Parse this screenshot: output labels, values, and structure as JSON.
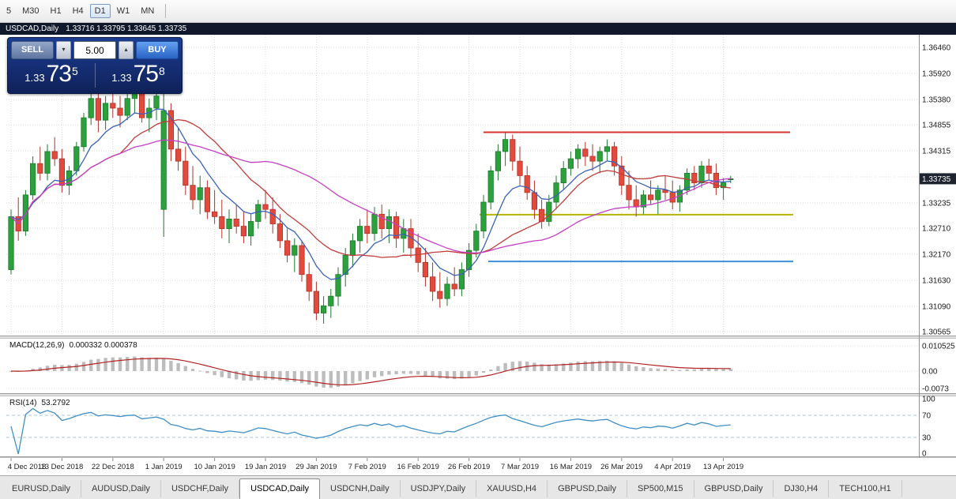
{
  "colors": {
    "candle_up": "#2ba03c",
    "candle_up_border": "#1d7a2c",
    "candle_down": "#e14a3c",
    "candle_down_border": "#b23327",
    "grid": "#d8d8d8",
    "badge_bg": "#1e2430",
    "macd_hist": "#bdbdbd",
    "macd_signal": "#b22222",
    "rsi_line": "#3f8fc5",
    "rsi_level": "#a9c3dc",
    "panel_bg": "#16307c"
  },
  "toolbar": {
    "timeframes": [
      {
        "label": "5",
        "active": false
      },
      {
        "label": "M30",
        "active": false
      },
      {
        "label": "H1",
        "active": false
      },
      {
        "label": "H4",
        "active": false
      },
      {
        "label": "D1",
        "active": true
      },
      {
        "label": "W1",
        "active": false
      },
      {
        "label": "MN",
        "active": false
      }
    ]
  },
  "caption": {
    "title": "USDCAD,Daily",
    "ohlc": "1.33716 1.33795 1.33645 1.33735"
  },
  "trade_panel": {
    "sell_label": "SELL",
    "buy_label": "BUY",
    "volume": "5.00",
    "volume_down_icon": "▾",
    "volume_up_icon": "▴",
    "sell_price": {
      "base": "1.33",
      "big": "73",
      "pipette": "5"
    },
    "buy_price": {
      "base": "1.33",
      "big": "75",
      "pipette": "8"
    }
  },
  "chart": {
    "current_price": "1.33735"
  },
  "indicators": {
    "macd": {
      "name": "MACD(12,26,9)",
      "values": "0.000332 0.000378",
      "fast": 12,
      "slow": 26,
      "signal": 9,
      "scale_labels": [
        "0.010525",
        "0.00",
        "-0.0073"
      ]
    },
    "rsi": {
      "name": "RSI(14)",
      "value": "53.2792",
      "period": 14,
      "scale_labels": [
        "100",
        "70",
        "30",
        "0"
      ],
      "levels": [
        70,
        30
      ]
    }
  },
  "chart_data": {
    "type": "candlestick",
    "symbol": "USDCAD",
    "period": "Daily",
    "ylim": [
      1.30565,
      1.3646
    ],
    "y_axis_labels": [
      "1.36460",
      "1.35920",
      "1.35380",
      "1.34855",
      "1.34315",
      "1.33775",
      "1.33235",
      "1.32710",
      "1.32170",
      "1.31630",
      "1.31090",
      "1.30565"
    ],
    "x_axis": {
      "start": 0,
      "every": 7,
      "labels": [
        "4 Dec 2018",
        "13 Dec 2018",
        "22 Dec 2018",
        "1 Jan 2019",
        "10 Jan 2019",
        "19 Jan 2019",
        "29 Jan 2019",
        "7 Feb 2019",
        "16 Feb 2019",
        "26 Feb 2019",
        "7 Mar 2019",
        "16 Mar 2019",
        "26 Mar 2019",
        "4 Apr 2019",
        "13 Apr 2019"
      ]
    },
    "mas": [
      {
        "name": "fast",
        "type": "ema",
        "period": 8,
        "color": "#3a62b8"
      },
      {
        "name": "mid",
        "type": "sma",
        "period": 16,
        "color": "#c23b3b"
      },
      {
        "name": "slow",
        "type": "sma",
        "period": 34,
        "color": "#c43fc4"
      }
    ],
    "hlines": [
      {
        "name": "resistance-line-red",
        "price": 1.347,
        "x1": 612,
        "x2": 1000,
        "color": "#d9342b"
      },
      {
        "name": "support-line-yellow",
        "price": 1.3299,
        "x1": 607,
        "x2": 1004,
        "color": "#b8b400"
      },
      {
        "name": "support-line-blue",
        "price": 1.3202,
        "x1": 618,
        "x2": 1004,
        "color": "#3d8fd6"
      }
    ],
    "candles": [
      [
        1.3185,
        1.331,
        1.3175,
        1.3295
      ],
      [
        1.3295,
        1.3335,
        1.3245,
        1.3265
      ],
      [
        1.3265,
        1.335,
        1.3255,
        1.334
      ],
      [
        1.334,
        1.342,
        1.333,
        1.3405
      ],
      [
        1.3405,
        1.344,
        1.337,
        1.3385
      ],
      [
        1.3385,
        1.3445,
        1.337,
        1.343
      ],
      [
        1.343,
        1.346,
        1.34,
        1.3415
      ],
      [
        1.3415,
        1.3435,
        1.3345,
        1.336
      ],
      [
        1.336,
        1.34,
        1.334,
        1.339
      ],
      [
        1.339,
        1.345,
        1.338,
        1.344
      ],
      [
        1.344,
        1.351,
        1.343,
        1.35
      ],
      [
        1.35,
        1.356,
        1.3485,
        1.354
      ],
      [
        1.354,
        1.3555,
        1.347,
        1.3495
      ],
      [
        1.3495,
        1.3545,
        1.3475,
        1.353
      ],
      [
        1.353,
        1.356,
        1.35,
        1.352
      ],
      [
        1.352,
        1.3545,
        1.348,
        1.3505
      ],
      [
        1.3505,
        1.355,
        1.3495,
        1.354
      ],
      [
        1.354,
        1.3562,
        1.351,
        1.355
      ],
      [
        1.355,
        1.3558,
        1.349,
        1.35
      ],
      [
        1.35,
        1.354,
        1.347,
        1.352
      ],
      [
        1.352,
        1.3556,
        1.3495,
        1.3545
      ],
      [
        1.331,
        1.3561,
        1.3253,
        1.3515
      ],
      [
        1.3515,
        1.353,
        1.341,
        1.3435
      ],
      [
        1.3435,
        1.348,
        1.339,
        1.341
      ],
      [
        1.341,
        1.344,
        1.334,
        1.336
      ],
      [
        1.336,
        1.34,
        1.331,
        1.333
      ],
      [
        1.333,
        1.338,
        1.33,
        1.3355
      ],
      [
        1.3355,
        1.337,
        1.329,
        1.3305
      ],
      [
        1.3305,
        1.335,
        1.328,
        1.3295
      ],
      [
        1.3295,
        1.333,
        1.325,
        1.327
      ],
      [
        1.327,
        1.331,
        1.324,
        1.329
      ],
      [
        1.329,
        1.332,
        1.326,
        1.3275
      ],
      [
        1.3275,
        1.3305,
        1.324,
        1.3255
      ],
      [
        1.3255,
        1.33,
        1.3235,
        1.3285
      ],
      [
        1.3285,
        1.333,
        1.327,
        1.332
      ],
      [
        1.332,
        1.335,
        1.329,
        1.331
      ],
      [
        1.331,
        1.3335,
        1.326,
        1.328
      ],
      [
        1.328,
        1.33,
        1.323,
        1.3245
      ],
      [
        1.3245,
        1.327,
        1.32,
        1.3215
      ],
      [
        1.3215,
        1.325,
        1.318,
        1.3235
      ],
      [
        1.3235,
        1.3245,
        1.316,
        1.3175
      ],
      [
        1.3175,
        1.32,
        1.312,
        1.314
      ],
      [
        1.314,
        1.316,
        1.308,
        1.3095
      ],
      [
        1.3095,
        1.313,
        1.3073,
        1.311
      ],
      [
        1.311,
        1.3145,
        1.3085,
        1.313
      ],
      [
        1.313,
        1.319,
        1.311,
        1.3175
      ],
      [
        1.3175,
        1.323,
        1.315,
        1.3215
      ],
      [
        1.3215,
        1.326,
        1.319,
        1.3245
      ],
      [
        1.3245,
        1.329,
        1.322,
        1.3275
      ],
      [
        1.3275,
        1.331,
        1.324,
        1.326
      ],
      [
        1.326,
        1.3315,
        1.3245,
        1.33
      ],
      [
        1.33,
        1.332,
        1.325,
        1.327
      ],
      [
        1.327,
        1.331,
        1.324,
        1.3295
      ],
      [
        1.3295,
        1.3305,
        1.323,
        1.325
      ],
      [
        1.325,
        1.329,
        1.322,
        1.327
      ],
      [
        1.327,
        1.329,
        1.321,
        1.323
      ],
      [
        1.323,
        1.326,
        1.318,
        1.32
      ],
      [
        1.32,
        1.323,
        1.315,
        1.317
      ],
      [
        1.317,
        1.32,
        1.312,
        1.314
      ],
      [
        1.314,
        1.318,
        1.3106,
        1.3125
      ],
      [
        1.3125,
        1.317,
        1.311,
        1.3155
      ],
      [
        1.3155,
        1.319,
        1.313,
        1.3145
      ],
      [
        1.3145,
        1.32,
        1.313,
        1.3185
      ],
      [
        1.3185,
        1.324,
        1.317,
        1.3225
      ],
      [
        1.3225,
        1.328,
        1.321,
        1.3265
      ],
      [
        1.3265,
        1.334,
        1.325,
        1.3325
      ],
      [
        1.3325,
        1.34,
        1.331,
        1.339
      ],
      [
        1.339,
        1.3445,
        1.337,
        1.343
      ],
      [
        1.343,
        1.347,
        1.34,
        1.3455
      ],
      [
        1.3455,
        1.3465,
        1.339,
        1.341
      ],
      [
        1.341,
        1.344,
        1.336,
        1.338
      ],
      [
        1.338,
        1.34,
        1.333,
        1.3345
      ],
      [
        1.3345,
        1.337,
        1.329,
        1.331
      ],
      [
        1.331,
        1.333,
        1.327,
        1.3285
      ],
      [
        1.3285,
        1.334,
        1.3275,
        1.3325
      ],
      [
        1.3325,
        1.338,
        1.331,
        1.3365
      ],
      [
        1.3365,
        1.341,
        1.335,
        1.3395
      ],
      [
        1.3395,
        1.343,
        1.338,
        1.3415
      ],
      [
        1.3415,
        1.3445,
        1.3395,
        1.3435
      ],
      [
        1.3435,
        1.345,
        1.34,
        1.342
      ],
      [
        1.342,
        1.3445,
        1.339,
        1.341
      ],
      [
        1.341,
        1.344,
        1.3385,
        1.343
      ],
      [
        1.343,
        1.3455,
        1.341,
        1.344
      ],
      [
        1.344,
        1.345,
        1.338,
        1.34
      ],
      [
        1.34,
        1.342,
        1.334,
        1.336
      ],
      [
        1.336,
        1.339,
        1.331,
        1.333
      ],
      [
        1.333,
        1.336,
        1.3295,
        1.3315
      ],
      [
        1.3315,
        1.335,
        1.33,
        1.334
      ],
      [
        1.334,
        1.337,
        1.332,
        1.333
      ],
      [
        1.333,
        1.336,
        1.33,
        1.335
      ],
      [
        1.335,
        1.338,
        1.333,
        1.3345
      ],
      [
        1.3345,
        1.337,
        1.331,
        1.3325
      ],
      [
        1.3325,
        1.336,
        1.3305,
        1.335
      ],
      [
        1.335,
        1.3395,
        1.334,
        1.3385
      ],
      [
        1.3385,
        1.34,
        1.335,
        1.3365
      ],
      [
        1.3365,
        1.341,
        1.3355,
        1.34
      ],
      [
        1.34,
        1.3415,
        1.337,
        1.3385
      ],
      [
        1.3385,
        1.3405,
        1.334,
        1.3355
      ],
      [
        1.3355,
        1.3375,
        1.333,
        1.3365
      ],
      [
        1.33716,
        1.33795,
        1.33645,
        1.33735
      ]
    ]
  },
  "tabs": [
    {
      "label": "EURUSD,Daily",
      "active": false
    },
    {
      "label": "AUDUSD,Daily",
      "active": false
    },
    {
      "label": "USDCHF,Daily",
      "active": false
    },
    {
      "label": "USDCAD,Daily",
      "active": true
    },
    {
      "label": "USDCNH,Daily",
      "active": false
    },
    {
      "label": "USDJPY,Daily",
      "active": false
    },
    {
      "label": "XAUUSD,H4",
      "active": false
    },
    {
      "label": "GBPUSD,Daily",
      "active": false
    },
    {
      "label": "SP500,M15",
      "active": false
    },
    {
      "label": "GBPUSD,Daily",
      "active": false
    },
    {
      "label": "DJ30,H4",
      "active": false
    },
    {
      "label": "TECH100,H1",
      "active": false
    }
  ]
}
